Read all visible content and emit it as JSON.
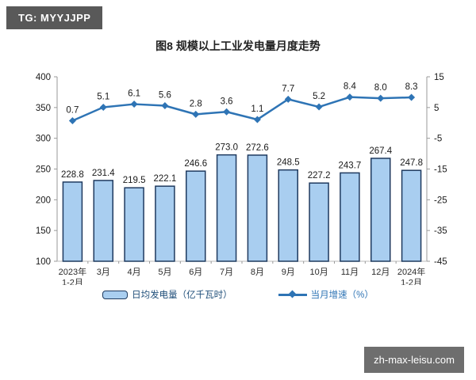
{
  "badges": {
    "tg": "TG: MYYJJPP",
    "watermark": "zh-max-leisu.com"
  },
  "chart_data": {
    "type": "bar+line combo",
    "title": "图8  规模以上工业发电量月度走势",
    "categories": [
      "2023年\n1-2月",
      "3月",
      "4月",
      "5月",
      "6月",
      "7月",
      "8月",
      "9月",
      "10月",
      "11月",
      "12月",
      "2024年\n1-2月"
    ],
    "series": [
      {
        "name": "日均发电量（亿千瓦时）",
        "type": "bar",
        "axis": "left",
        "values": [
          228.8,
          231.4,
          219.5,
          222.1,
          246.6,
          273.0,
          272.6,
          248.5,
          227.2,
          243.7,
          267.4,
          247.8
        ],
        "fill": "#A9CEF0",
        "border": "#1F3A5F"
      },
      {
        "name": "当月增速（%）",
        "type": "line",
        "axis": "right",
        "values": [
          0.7,
          5.1,
          6.1,
          5.6,
          2.8,
          3.6,
          1.1,
          7.7,
          5.2,
          8.4,
          8.0,
          8.3
        ],
        "color": "#2E74B5",
        "marker": "diamond"
      }
    ],
    "left_axis": {
      "min": 100,
      "max": 400,
      "ticks": [
        400,
        350,
        300,
        250,
        200,
        150,
        100
      ]
    },
    "right_axis": {
      "min": -45,
      "max": 15,
      "ticks": [
        15,
        5,
        -5,
        -15,
        -25,
        -35,
        -45
      ]
    },
    "legend": {
      "bars_label": "日均发电量（亿千瓦时）",
      "line_label": "当月增速（%）",
      "position": "bottom"
    },
    "grid": false,
    "label_decimals": 1
  }
}
